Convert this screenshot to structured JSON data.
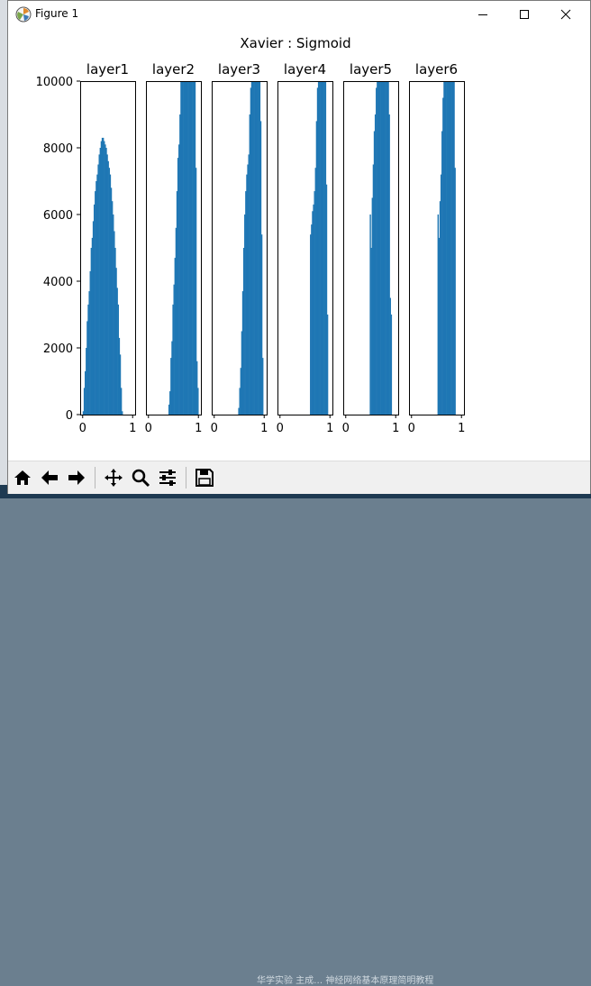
{
  "window": {
    "title": "Figure 1"
  },
  "desktop": {
    "taskbar_text": "华学实验 主成…  神经网络基本原理简明教程"
  },
  "toolbar": {
    "buttons": [
      "home-icon",
      "back-arrow-icon",
      "forward-arrow-icon",
      "pan-icon",
      "zoom-icon",
      "configure-subplots-icon",
      "save-icon"
    ]
  },
  "colors": {
    "bar": "#1f77b4"
  },
  "chart_data": {
    "type": "bar",
    "title": "Xavier : Sigmoid",
    "ylim": [
      0,
      10000
    ],
    "yticks": [
      "0",
      "2000",
      "4000",
      "6000",
      "8000",
      "10000"
    ],
    "xlim": [
      -0.05,
      1.05
    ],
    "xticks": [
      "0",
      "1"
    ],
    "bins_x": [
      0.0,
      0.02,
      0.04,
      0.06,
      0.08,
      0.1,
      0.12,
      0.14,
      0.16,
      0.18,
      0.2,
      0.22,
      0.24,
      0.26,
      0.28,
      0.3,
      0.32,
      0.34,
      0.36,
      0.38,
      0.4,
      0.42,
      0.44,
      0.46,
      0.48,
      0.5,
      0.52,
      0.54,
      0.56,
      0.58,
      0.6,
      0.62,
      0.64,
      0.66,
      0.68,
      0.7,
      0.72,
      0.74,
      0.76,
      0.78,
      0.8,
      0.82,
      0.84,
      0.86,
      0.88,
      0.9,
      0.92,
      0.94,
      0.96,
      0.98
    ],
    "bin_width": 0.02,
    "subplots": [
      {
        "title": "layer1",
        "series": [
          {
            "values": [
              100,
              800,
              1300,
              2000,
              2800,
              3300,
              3700,
              4300,
              5000,
              5300,
              5800,
              6300,
              6700,
              7000,
              7200,
              7500,
              7800,
              8000,
              8200,
              8300,
              8300,
              8200,
              8100,
              8000,
              7800,
              7600,
              7400,
              7200,
              6800,
              6400,
              6000,
              5500,
              5000,
              4400,
              3800,
              3300,
              2300,
              1800,
              800,
              100,
              0,
              0,
              0,
              0,
              0,
              0,
              0,
              0,
              0,
              0
            ]
          }
        ]
      },
      {
        "title": "layer2",
        "series": [
          {
            "values": [
              0,
              0,
              0,
              0,
              0,
              0,
              0,
              0,
              0,
              0,
              0,
              0,
              0,
              0,
              0,
              0,
              0,
              0,
              0,
              0,
              300,
              700,
              1700,
              2200,
              3300,
              3900,
              4700,
              5600,
              6700,
              7700,
              8100,
              9000,
              10000,
              10000,
              10000,
              10000,
              10000,
              10000,
              10000,
              10000,
              10000,
              10000,
              10000,
              10000,
              10000,
              10000,
              10000,
              7400,
              1600,
              800
            ]
          }
        ]
      },
      {
        "title": "layer3",
        "series": [
          {
            "values": [
              0,
              0,
              0,
              0,
              0,
              0,
              0,
              0,
              0,
              0,
              0,
              0,
              0,
              0,
              0,
              0,
              0,
              0,
              0,
              0,
              0,
              0,
              0,
              0,
              200,
              800,
              1400,
              2500,
              3700,
              5000,
              6000,
              6700,
              7200,
              7500,
              7800,
              9000,
              9800,
              10000,
              10000,
              10000,
              10000,
              10000,
              10000,
              10000,
              10000,
              10000,
              8800,
              5400,
              1700,
              0
            ]
          }
        ]
      },
      {
        "title": "layer4",
        "series": [
          {
            "values": [
              0,
              0,
              0,
              0,
              0,
              0,
              0,
              0,
              0,
              0,
              0,
              0,
              0,
              0,
              0,
              0,
              0,
              0,
              0,
              0,
              0,
              0,
              0,
              0,
              0,
              0,
              0,
              0,
              0,
              0,
              5400,
              5700,
              6100,
              6300,
              6700,
              7400,
              8800,
              9800,
              10000,
              10000,
              10000,
              10000,
              10000,
              10000,
              10000,
              10000,
              6900,
              3000,
              0,
              0
            ]
          }
        ]
      },
      {
        "title": "layer5",
        "series": [
          {
            "values": [
              0,
              0,
              0,
              0,
              0,
              0,
              0,
              0,
              0,
              0,
              0,
              0,
              0,
              0,
              0,
              0,
              0,
              0,
              0,
              0,
              0,
              0,
              0,
              0,
              6000,
              5000,
              6500,
              7500,
              8500,
              9000,
              9800,
              10000,
              10000,
              10000,
              10000,
              10000,
              10000,
              10000,
              10000,
              10000,
              10000,
              10000,
              10000,
              9000,
              3500,
              3000,
              0,
              0,
              0,
              0
            ]
          }
        ]
      },
      {
        "title": "layer6",
        "series": [
          {
            "values": [
              0,
              0,
              0,
              0,
              0,
              0,
              0,
              0,
              0,
              0,
              0,
              0,
              0,
              0,
              0,
              0,
              0,
              0,
              0,
              0,
              0,
              0,
              0,
              0,
              0,
              0,
              6000,
              5300,
              6400,
              7200,
              8500,
              9500,
              10000,
              10000,
              10000,
              10000,
              10000,
              10000,
              10000,
              10000,
              10000,
              10000,
              10000,
              7400,
              0,
              0,
              0,
              0,
              0,
              0
            ]
          }
        ]
      }
    ]
  }
}
